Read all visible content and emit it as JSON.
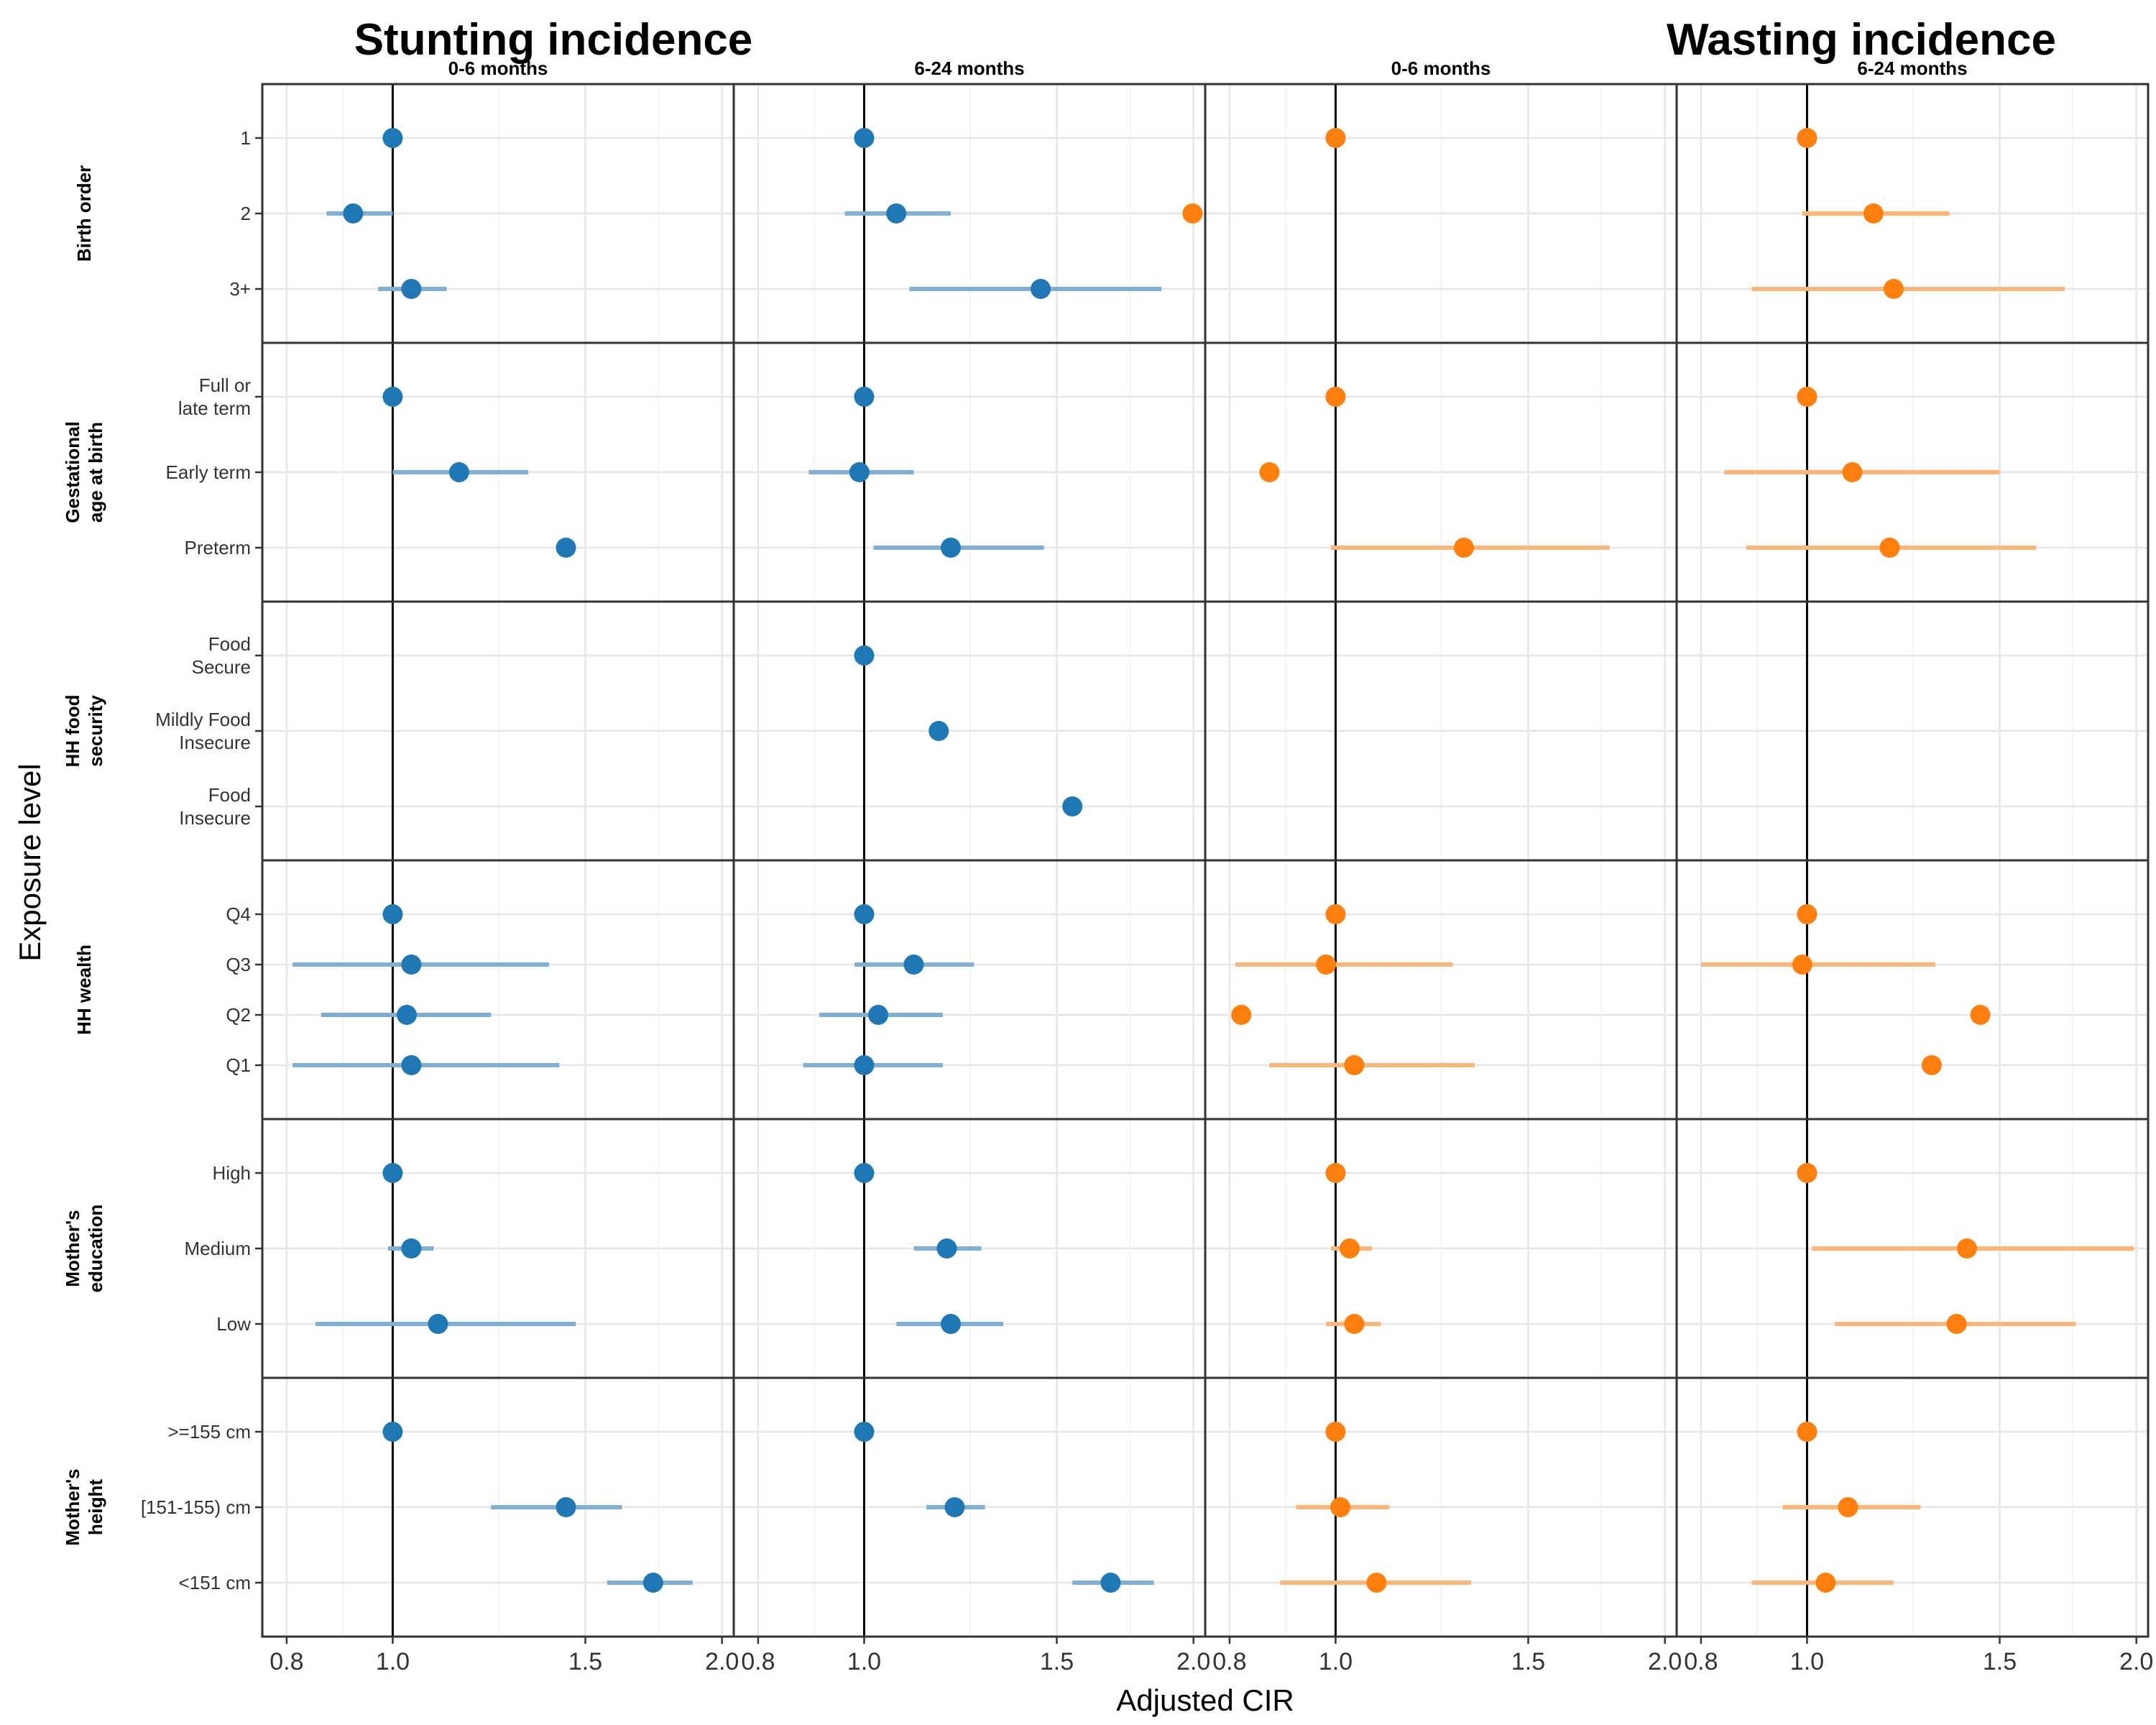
{
  "chart_data": {
    "type": "scatter",
    "x_scale": "log",
    "xlim": [
      0.76,
      2.05
    ],
    "x_ticks": [
      0.8,
      1.0,
      1.5,
      2.0
    ],
    "x_tick_labels": [
      "0.8",
      "1.0",
      "1.5",
      "2.0"
    ],
    "xlabel": "Adjusted CIR",
    "ylabel": "Exposure level",
    "grid": true,
    "titles": [
      "Stunting incidence",
      "Wasting incidence"
    ],
    "columns": [
      {
        "label": "0-6 months",
        "outcome": "Stunting incidence",
        "color": "#1F77B4",
        "ci_color": "#7FB0D4"
      },
      {
        "label": "6-24 months",
        "outcome": "Stunting incidence",
        "color": "#1F77B4",
        "ci_color": "#7FB0D4"
      },
      {
        "label": "0-6 months",
        "outcome": "Wasting incidence",
        "color": "#FF7F0E",
        "ci_color": "#FDB57A"
      },
      {
        "label": "6-24 months",
        "outcome": "Wasting incidence",
        "color": "#FF7F0E",
        "ci_color": "#FDB57A"
      }
    ],
    "rows": [
      {
        "name": [
          "Birth order"
        ],
        "levels": [
          [
            "1"
          ],
          [
            "2"
          ],
          [
            "3+"
          ]
        ],
        "estimates": [
          [
            [
              1.0,
              null,
              null
            ],
            [
              0.92,
              0.87,
              1.0
            ],
            [
              1.04,
              0.97,
              1.12
            ]
          ],
          [
            [
              1.0,
              null,
              null
            ],
            [
              1.07,
              0.96,
              1.2
            ],
            [
              1.45,
              1.1,
              1.87
            ]
          ],
          [
            [
              1.0,
              null,
              null
            ],
            [
              0.74,
              null,
              null
            ],
            null
          ],
          [
            [
              1.0,
              null,
              null
            ],
            [
              1.15,
              0.99,
              1.35
            ],
            [
              1.2,
              0.89,
              1.72
            ]
          ]
        ]
      },
      {
        "name": [
          "Gestational",
          "age at birth"
        ],
        "levels": [
          [
            "Full or",
            "late term"
          ],
          [
            "Early term"
          ],
          [
            "Preterm"
          ]
        ],
        "estimates": [
          [
            [
              1.0,
              null,
              null
            ],
            [
              1.15,
              1.0,
              1.33
            ],
            [
              1.44,
              null,
              null
            ]
          ],
          [
            [
              1.0,
              null,
              null
            ],
            [
              0.99,
              0.89,
              1.11
            ],
            [
              1.2,
              1.02,
              1.46
            ]
          ],
          [
            [
              1.0,
              null,
              null
            ],
            [
              0.87,
              null,
              null
            ],
            [
              1.31,
              0.99,
              1.78
            ]
          ],
          [
            [
              1.0,
              null,
              null
            ],
            [
              1.1,
              0.84,
              1.5
            ],
            [
              1.19,
              0.88,
              1.62
            ]
          ]
        ]
      },
      {
        "name": [
          "HH food",
          "security"
        ],
        "levels": [
          [
            "Food",
            "Secure"
          ],
          [
            "Mildly Food",
            "Insecure"
          ],
          [
            "Food",
            "Insecure"
          ]
        ],
        "estimates": [
          [
            null,
            null,
            null
          ],
          [
            [
              1.0,
              null,
              null
            ],
            [
              1.17,
              null,
              null
            ],
            [
              1.55,
              null,
              null
            ]
          ],
          [
            null,
            null,
            null
          ],
          [
            null,
            null,
            null
          ]
        ]
      },
      {
        "name": [
          "HH wealth"
        ],
        "levels": [
          [
            "Q4"
          ],
          [
            "Q3"
          ],
          [
            "Q2"
          ],
          [
            "Q1"
          ]
        ],
        "estimates": [
          [
            [
              1.0,
              null,
              null
            ],
            [
              1.04,
              0.81,
              1.39
            ],
            [
              1.03,
              0.86,
              1.23
            ],
            [
              1.04,
              0.81,
              1.42
            ]
          ],
          [
            [
              1.0,
              null,
              null
            ],
            [
              1.11,
              0.98,
              1.26
            ],
            [
              1.03,
              0.91,
              1.18
            ],
            [
              1.0,
              0.88,
              1.18
            ]
          ],
          [
            [
              1.0,
              null,
              null
            ],
            [
              0.98,
              0.81,
              1.28
            ],
            [
              0.82,
              null,
              null
            ],
            [
              1.04,
              0.87,
              1.34
            ]
          ],
          [
            [
              1.0,
              null,
              null
            ],
            [
              0.99,
              0.8,
              1.31
            ],
            [
              1.44,
              null,
              null
            ],
            [
              1.3,
              null,
              null
            ]
          ]
        ]
      },
      {
        "name": [
          "Mother's",
          "education"
        ],
        "levels": [
          [
            "High"
          ],
          [
            "Medium"
          ],
          [
            "Low"
          ]
        ],
        "estimates": [
          [
            [
              1.0,
              null,
              null
            ],
            [
              1.04,
              0.99,
              1.09
            ],
            [
              1.1,
              0.85,
              1.47
            ]
          ],
          [
            [
              1.0,
              null,
              null
            ],
            [
              1.19,
              1.11,
              1.28
            ],
            [
              1.2,
              1.07,
              1.34
            ]
          ],
          [
            [
              1.0,
              null,
              null
            ],
            [
              1.03,
              0.99,
              1.08
            ],
            [
              1.04,
              0.98,
              1.1
            ]
          ],
          [
            [
              1.0,
              null,
              null
            ],
            [
              1.4,
              1.01,
              1.99
            ],
            [
              1.37,
              1.06,
              1.76
            ]
          ]
        ]
      },
      {
        "name": [
          "Mother's",
          "height"
        ],
        "levels": [
          [
            ">=155 cm"
          ],
          [
            "[151-155) cm"
          ],
          [
            "<151 cm"
          ]
        ],
        "estimates": [
          [
            [
              1.0,
              null,
              null
            ],
            [
              1.44,
              1.23,
              1.62
            ],
            [
              1.73,
              1.57,
              1.88
            ]
          ],
          [
            [
              1.0,
              null,
              null
            ],
            [
              1.21,
              1.14,
              1.29
            ],
            [
              1.68,
              1.55,
              1.84
            ]
          ],
          [
            [
              1.0,
              null,
              null
            ],
            [
              1.01,
              0.92,
              1.12
            ],
            [
              1.09,
              0.89,
              1.33
            ]
          ],
          [
            [
              1.0,
              null,
              null
            ],
            [
              1.09,
              0.95,
              1.27
            ],
            [
              1.04,
              0.89,
              1.2
            ]
          ]
        ]
      }
    ]
  }
}
